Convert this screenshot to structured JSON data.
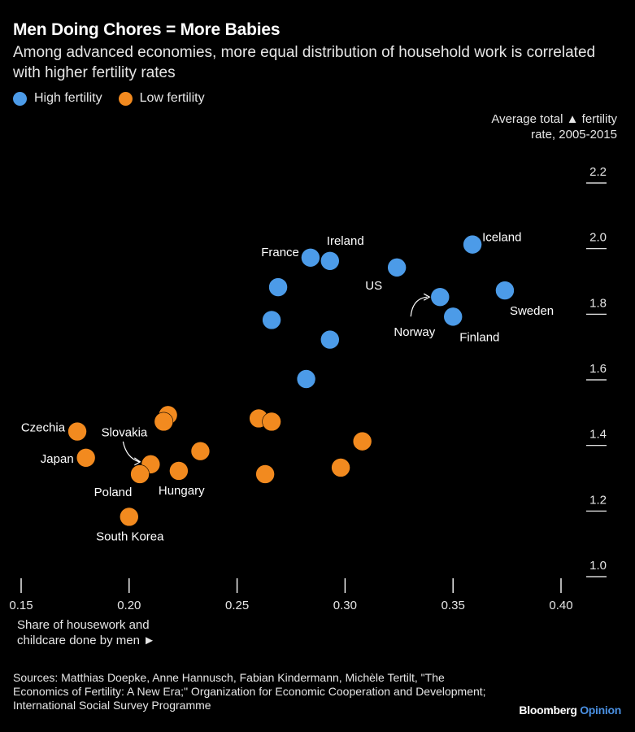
{
  "title": "Men Doing Chores = More Babies",
  "subtitle": "Among advanced economies, more equal distribution of household work is correlated with higher fertility rates",
  "legend": {
    "high_label": "High fertility",
    "low_label": "Low fertility"
  },
  "colors": {
    "high": "#4c9be8",
    "low": "#f28a1f",
    "background": "#000000"
  },
  "y_axis_title": "Average total ▲ fertility rate, 2005-2015",
  "x_axis_title": "Share of housework and childcare done by men ►",
  "sources": "Sources: Matthias Doepke, Anne Hannusch, Fabian Kindermann, Michèle Tertilt, \"The Economics of Fertility: A New Era;\" Organization for Economic Cooperation and Development; International Social Survey Programme",
  "brand": {
    "name": "Bloomberg",
    "section": "Opinion"
  },
  "chart_data": {
    "type": "scatter",
    "title": "Men Doing Chores = More Babies",
    "xlabel": "Share of housework and childcare done by men",
    "ylabel": "Average total fertility rate, 2005-2015",
    "xlim": [
      0.15,
      0.4
    ],
    "ylim": [
      1.0,
      2.2
    ],
    "x_ticks": [
      "0.15",
      "0.20",
      "0.25",
      "0.30",
      "0.35",
      "0.40"
    ],
    "y_ticks": [
      "1.0",
      "1.2",
      "1.4",
      "1.6",
      "1.8",
      "2.0",
      "2.2"
    ],
    "grid": false,
    "legend_position": "top-left",
    "series": [
      {
        "name": "High fertility",
        "points": [
          {
            "x": 0.359,
            "y": 2.01,
            "label": "Iceland"
          },
          {
            "x": 0.284,
            "y": 1.97,
            "label": "France"
          },
          {
            "x": 0.293,
            "y": 1.96,
            "label": "Ireland"
          },
          {
            "x": 0.324,
            "y": 1.94,
            "label": "US"
          },
          {
            "x": 0.269,
            "y": 1.88,
            "label": ""
          },
          {
            "x": 0.374,
            "y": 1.87,
            "label": "Sweden"
          },
          {
            "x": 0.344,
            "y": 1.85,
            "label": "Norway"
          },
          {
            "x": 0.35,
            "y": 1.79,
            "label": "Finland"
          },
          {
            "x": 0.266,
            "y": 1.78,
            "label": ""
          },
          {
            "x": 0.293,
            "y": 1.72,
            "label": ""
          },
          {
            "x": 0.282,
            "y": 1.6,
            "label": ""
          }
        ]
      },
      {
        "name": "Low fertility",
        "points": [
          {
            "x": 0.218,
            "y": 1.49,
            "label": ""
          },
          {
            "x": 0.216,
            "y": 1.47,
            "label": "Slovakia"
          },
          {
            "x": 0.26,
            "y": 1.48,
            "label": ""
          },
          {
            "x": 0.266,
            "y": 1.47,
            "label": ""
          },
          {
            "x": 0.176,
            "y": 1.44,
            "label": "Czechia"
          },
          {
            "x": 0.308,
            "y": 1.41,
            "label": ""
          },
          {
            "x": 0.233,
            "y": 1.38,
            "label": ""
          },
          {
            "x": 0.18,
            "y": 1.36,
            "label": "Japan"
          },
          {
            "x": 0.21,
            "y": 1.34,
            "label": "Poland"
          },
          {
            "x": 0.205,
            "y": 1.31,
            "label": ""
          },
          {
            "x": 0.223,
            "y": 1.32,
            "label": "Hungary"
          },
          {
            "x": 0.298,
            "y": 1.33,
            "label": ""
          },
          {
            "x": 0.263,
            "y": 1.31,
            "label": ""
          },
          {
            "x": 0.2,
            "y": 1.18,
            "label": "South Korea"
          }
        ]
      }
    ]
  }
}
